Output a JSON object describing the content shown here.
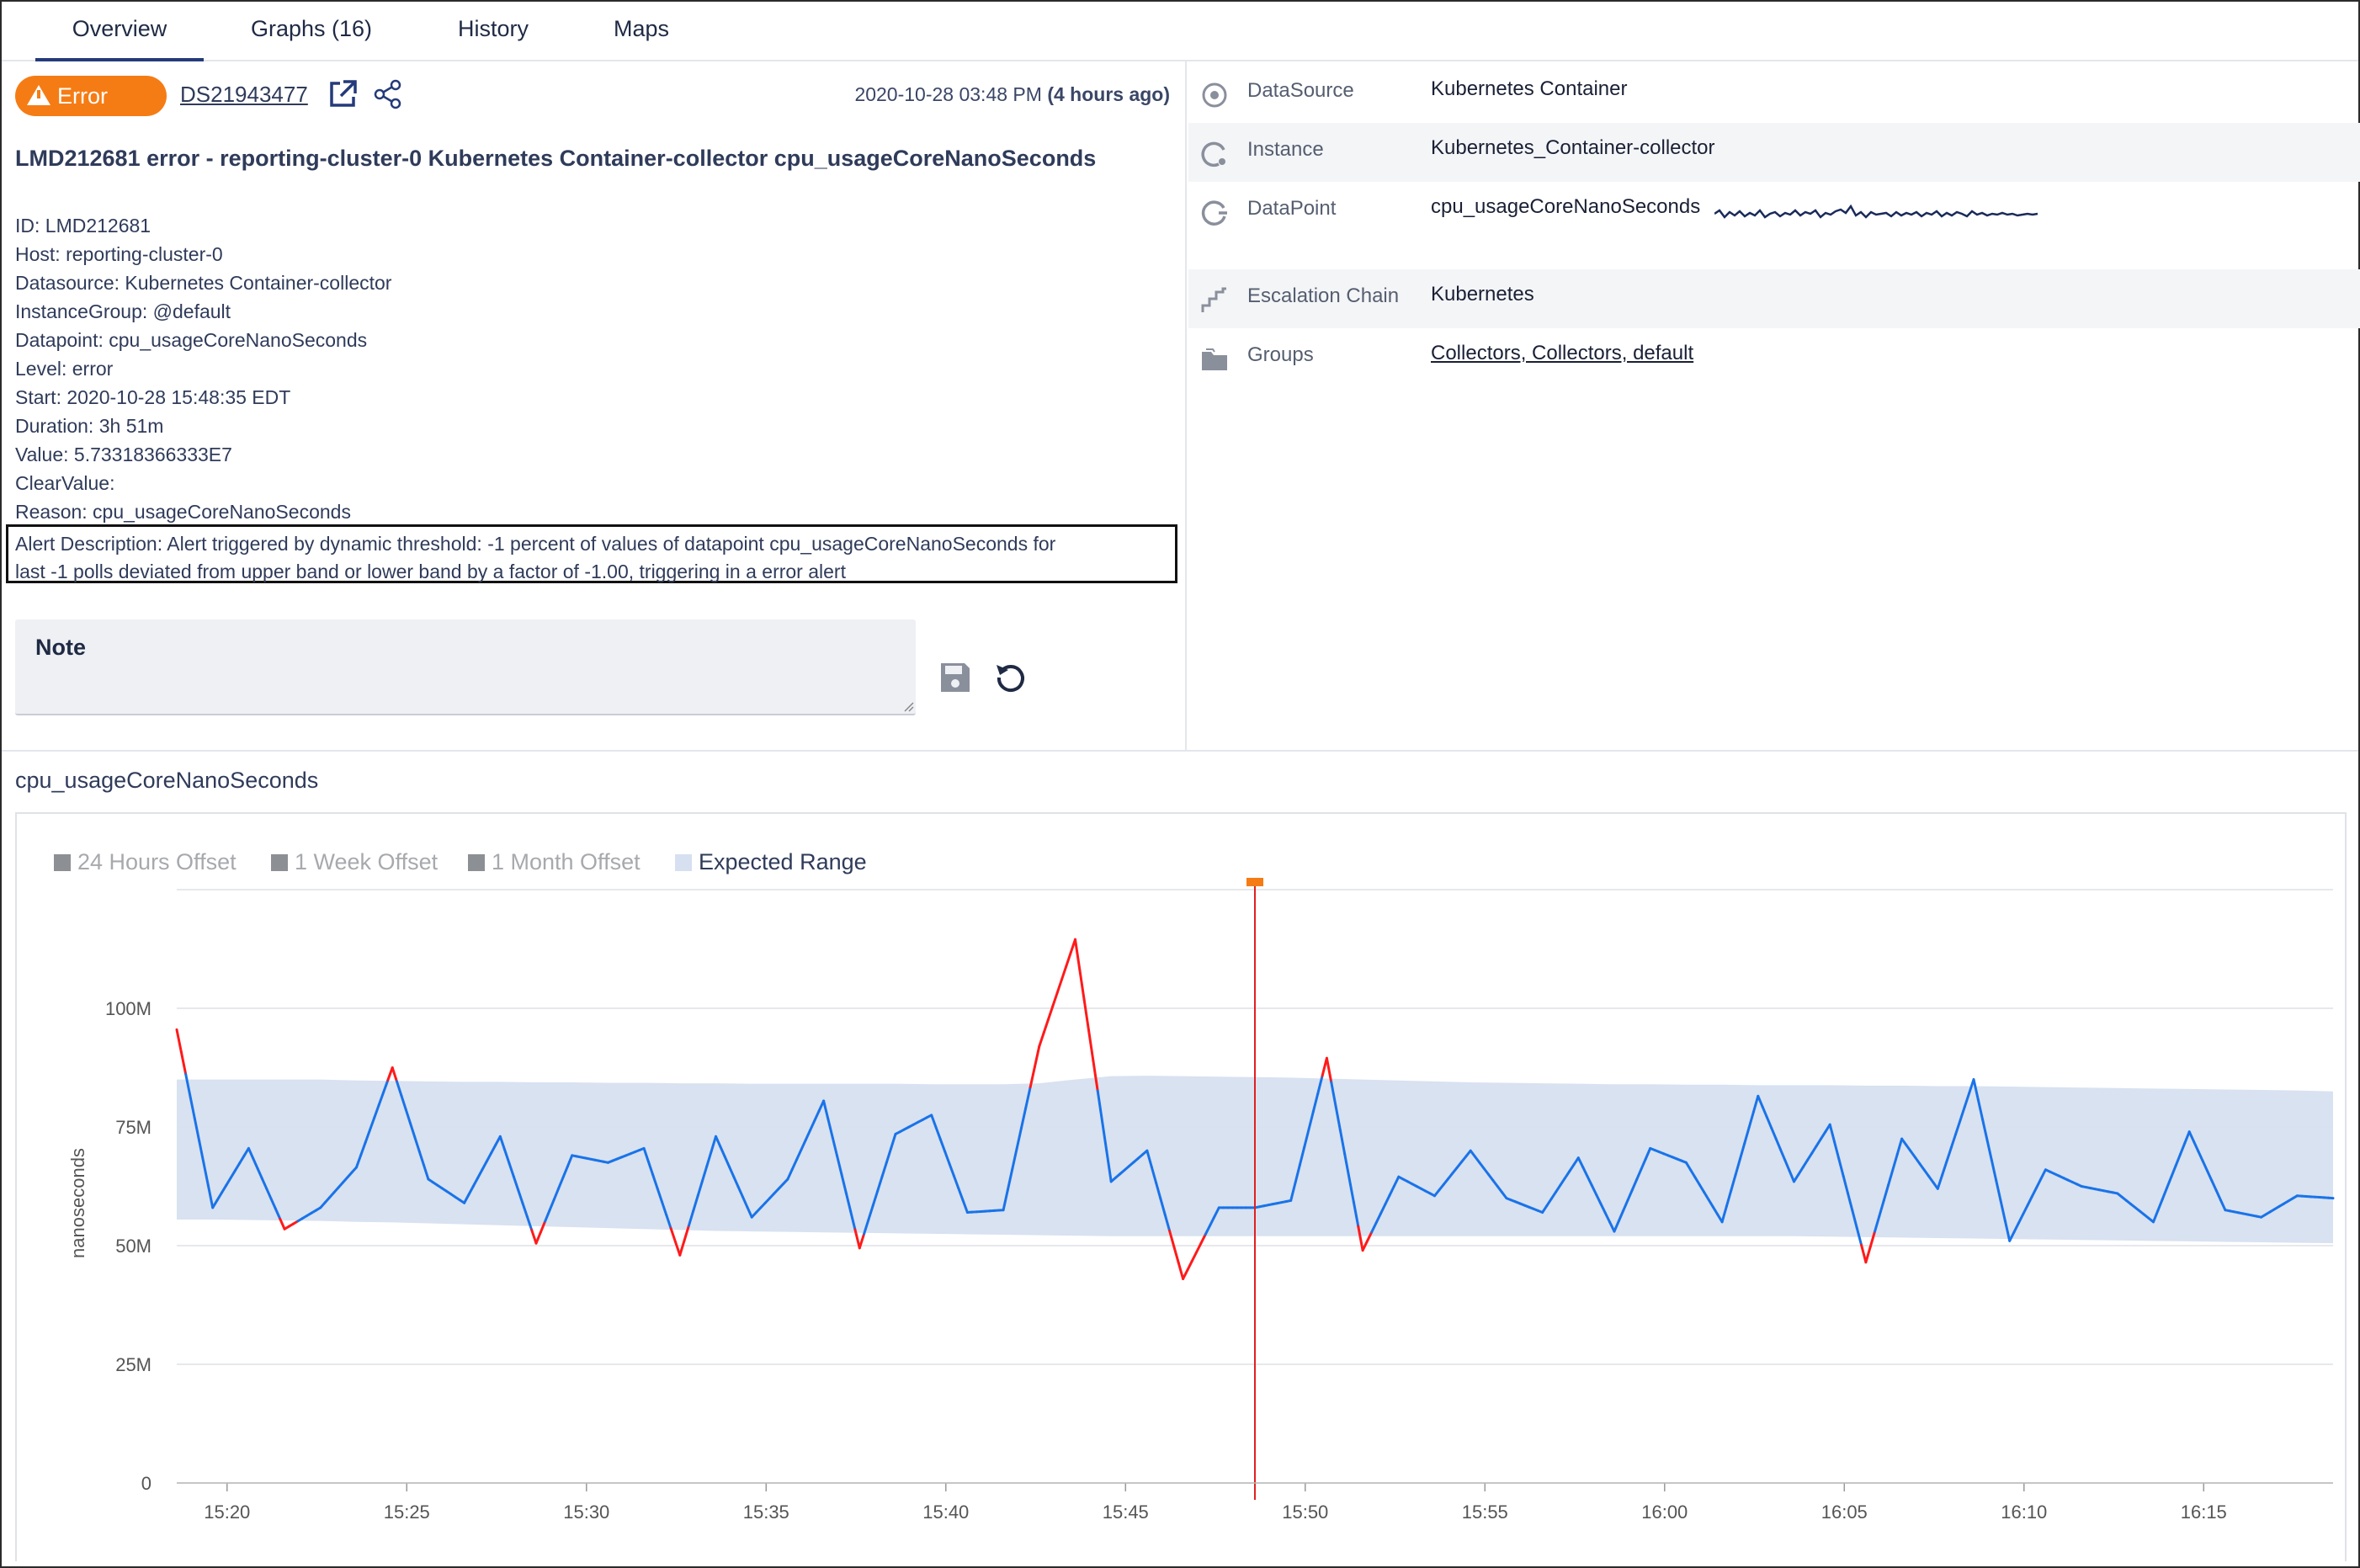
{
  "tabs": [
    {
      "label": "Overview",
      "active": true
    },
    {
      "label": "Graphs (16)",
      "active": false
    },
    {
      "label": "History",
      "active": false
    },
    {
      "label": "Maps",
      "active": false
    }
  ],
  "alert": {
    "status": "Error",
    "id_link": "DS21943477",
    "time": "2020-10-28 03:48 PM",
    "ago": "(4 hours ago)",
    "title": "LMD212681 error - reporting-cluster-0 Kubernetes Container-collector cpu_usageCoreNanoSeconds",
    "details": [
      "ID: LMD212681",
      "Host: reporting-cluster-0",
      "Datasource: Kubernetes Container-collector",
      "InstanceGroup: @default",
      "Datapoint: cpu_usageCoreNanoSeconds",
      "Level: error",
      "Start: 2020-10-28 15:48:35 EDT",
      "Duration: 3h 51m",
      "Value: 5.73318366333E7",
      "ClearValue:",
      "Reason: cpu_usageCoreNanoSeconds"
    ],
    "description_line1": "Alert Description: Alert triggered by dynamic threshold: -1 percent of values of datapoint cpu_usageCoreNanoSeconds for",
    "description_line2": "last -1 polls deviated from upper band or lower band by a factor of -1.00, triggering in a error alert",
    "note_label": "Note"
  },
  "properties": [
    {
      "label": "DataSource",
      "value": "Kubernetes Container",
      "icon": "datasource-icon",
      "link": false
    },
    {
      "label": "Instance",
      "value": "Kubernetes_Container-collector",
      "icon": "instance-icon",
      "link": false
    },
    {
      "label": "DataPoint",
      "value": "cpu_usageCoreNanoSeconds",
      "icon": "datapoint-icon",
      "link": false
    },
    {
      "label": "Escalation Chain",
      "value": "Kubernetes",
      "icon": "escalation-stairs-icon",
      "link": false
    },
    {
      "label": "Groups",
      "value": "Collectors, Collectors, default",
      "icon": "folder-icon",
      "link": true
    }
  ],
  "colors": {
    "accent": "#243a7a",
    "error": "#f57c14",
    "series": "#1a73e8",
    "violation": "#ff1a1a",
    "band": "#d6e0f0"
  },
  "chart_data": {
    "type": "line",
    "title": "cpu_usageCoreNanoSeconds",
    "ylabel": "nanoseconds",
    "ylim": [
      0,
      125000000
    ],
    "yticks": [
      {
        "v": 0,
        "label": "0"
      },
      {
        "v": 25000000,
        "label": "25M"
      },
      {
        "v": 50000000,
        "label": "50M"
      },
      {
        "v": 75000000,
        "label": "75M"
      },
      {
        "v": 100000000,
        "label": "100M"
      }
    ],
    "xticks": [
      "15:20",
      "15:25",
      "15:30",
      "15:35",
      "15:40",
      "15:45",
      "15:50",
      "15:55",
      "16:00",
      "16:05",
      "16:10",
      "16:15"
    ],
    "x_start": "15:18.6",
    "x_end": "16:18.6",
    "alert_time": "15:48.6",
    "legend": [
      {
        "label": "24 Hours Offset",
        "active": false
      },
      {
        "label": "1 Week Offset",
        "active": false
      },
      {
        "label": "1 Month Offset",
        "active": false
      },
      {
        "label": "Expected Range",
        "active": true
      }
    ],
    "series": [
      {
        "name": "cpu_usageCoreNanoSeconds",
        "values": [
          95.5,
          58,
          70.5,
          53.5,
          58,
          66.5,
          87.5,
          64,
          59,
          73,
          50.5,
          69,
          67.5,
          70.5,
          48,
          73,
          56,
          64,
          80.5,
          49.5,
          73.5,
          77.5,
          57,
          57.5,
          92,
          114.5,
          63.5,
          70,
          43,
          58,
          58,
          59.5,
          89.5,
          49,
          64.5,
          60.5,
          70,
          60,
          57,
          68.5,
          53,
          70.5,
          67.5,
          55,
          81.5,
          63.5,
          75.5,
          46.5,
          72.5,
          62,
          85,
          51,
          66,
          62.5,
          61,
          55,
          74,
          57.5,
          56,
          60.5,
          60
        ]
      }
    ],
    "band_upper": [
      85,
      85,
      85,
      85,
      85,
      84.8,
      84.7,
      84.6,
      84.5,
      84.5,
      84.4,
      84.4,
      84.3,
      84.3,
      84.2,
      84.2,
      84.1,
      84.1,
      84.1,
      84.1,
      84.1,
      84,
      84,
      84,
      84.2,
      85,
      85.7,
      85.8,
      85.7,
      85.6,
      85.5,
      85.4,
      85.2,
      85,
      84.8,
      84.6,
      84.4,
      84.3,
      84.2,
      84.1,
      84,
      84,
      83.9,
      83.9,
      83.8,
      83.8,
      83.8,
      83.7,
      83.7,
      83.6,
      83.6,
      83.5,
      83.4,
      83.3,
      83.2,
      83.1,
      83,
      82.9,
      82.8,
      82.7,
      82.5
    ],
    "band_lower": [
      55.5,
      55.5,
      55.4,
      55.3,
      55.2,
      55,
      54.9,
      54.7,
      54.5,
      54.3,
      54.1,
      53.9,
      53.7,
      53.5,
      53.3,
      53.1,
      53,
      52.9,
      52.8,
      52.7,
      52.6,
      52.5,
      52.4,
      52.3,
      52.2,
      52.1,
      52,
      52,
      52,
      52,
      52,
      52,
      52,
      52,
      52,
      52,
      52,
      52,
      52,
      52,
      52,
      52,
      52,
      52,
      52,
      52,
      51.9,
      51.8,
      51.7,
      51.6,
      51.5,
      51.4,
      51.3,
      51.2,
      51.1,
      51,
      50.9,
      50.8,
      50.7,
      50.6,
      50.5
    ]
  }
}
